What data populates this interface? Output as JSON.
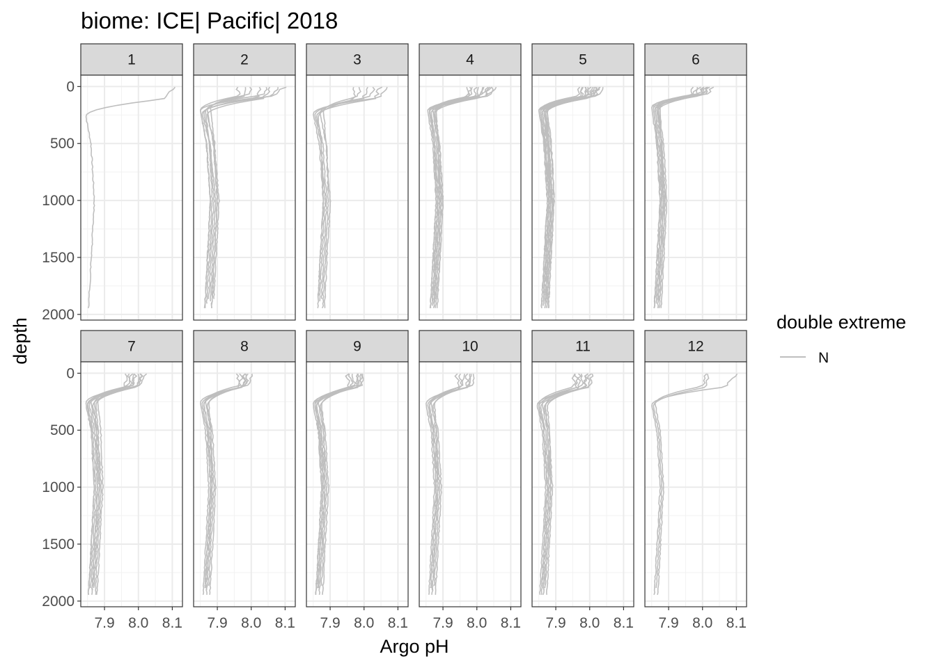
{
  "chart_data": {
    "type": "line",
    "title": "biome: ICE| Pacific| 2018",
    "xlabel": "Argo pH",
    "ylabel": "depth",
    "xlim": [
      7.83,
      8.13
    ],
    "ylim": [
      2050,
      -100
    ],
    "x_ticks": [
      "7.9",
      "8.0",
      "8.1"
    ],
    "x_tick_values": [
      7.9,
      8.0,
      8.1
    ],
    "y_ticks": [
      "0",
      "500",
      "1000",
      "1500",
      "2000"
    ],
    "y_tick_values": [
      0,
      500,
      1000,
      1500,
      2000
    ],
    "legend": {
      "title": "double extreme",
      "entries": [
        {
          "label": "N",
          "color": "#bebebe"
        }
      ],
      "position": "right"
    },
    "line_color": "#bebebe",
    "facets": [
      {
        "label": "1",
        "profiles": [
          {
            "surf": 8.11,
            "min": 7.845,
            "deep": 7.87,
            "thermo": 200,
            "end": 1960
          }
        ]
      },
      {
        "label": "2",
        "profiles": [
          {
            "surf": 8.1,
            "min": 7.85,
            "deep": 7.88,
            "thermo": 150,
            "end": 1950
          },
          {
            "surf": 8.08,
            "min": 7.86,
            "deep": 7.89,
            "thermo": 170,
            "end": 1880
          },
          {
            "surf": 8.05,
            "min": 7.87,
            "deep": 7.9,
            "thermo": 140,
            "end": 1960
          },
          {
            "surf": 8.03,
            "min": 7.855,
            "deep": 7.895,
            "thermo": 180,
            "end": 1900
          },
          {
            "surf": 8.0,
            "min": 7.88,
            "deep": 7.9,
            "thermo": 130,
            "end": 1950
          },
          {
            "surf": 7.98,
            "min": 7.865,
            "deep": 7.885,
            "thermo": 160,
            "end": 1920
          },
          {
            "surf": 8.06,
            "min": 7.87,
            "deep": 7.905,
            "thermo": 190,
            "end": 1880
          },
          {
            "surf": 7.96,
            "min": 7.85,
            "deep": 7.88,
            "thermo": 150,
            "end": 1960
          }
        ]
      },
      {
        "label": "3",
        "profiles": [
          {
            "surf": 8.07,
            "min": 7.85,
            "deep": 7.88,
            "thermo": 180,
            "end": 1950
          },
          {
            "surf": 8.05,
            "min": 7.86,
            "deep": 7.89,
            "thermo": 200,
            "end": 1880
          },
          {
            "surf": 8.03,
            "min": 7.87,
            "deep": 7.9,
            "thermo": 170,
            "end": 1960
          },
          {
            "surf": 8.01,
            "min": 7.855,
            "deep": 7.885,
            "thermo": 190,
            "end": 1900
          },
          {
            "surf": 7.99,
            "min": 7.88,
            "deep": 7.895,
            "thermo": 160,
            "end": 1950
          },
          {
            "surf": 7.97,
            "min": 7.865,
            "deep": 7.88,
            "thermo": 210,
            "end": 1880
          }
        ]
      },
      {
        "label": "4",
        "profiles": [
          {
            "surf": 8.06,
            "min": 7.855,
            "deep": 7.88,
            "thermo": 150,
            "end": 1960
          },
          {
            "surf": 8.05,
            "min": 7.86,
            "deep": 7.885,
            "thermo": 160,
            "end": 1900
          },
          {
            "surf": 8.04,
            "min": 7.865,
            "deep": 7.89,
            "thermo": 170,
            "end": 1950
          },
          {
            "surf": 8.03,
            "min": 7.87,
            "deep": 7.895,
            "thermo": 140,
            "end": 1880
          },
          {
            "surf": 8.02,
            "min": 7.875,
            "deep": 7.9,
            "thermo": 180,
            "end": 1960
          },
          {
            "surf": 8.01,
            "min": 7.88,
            "deep": 7.89,
            "thermo": 155,
            "end": 1920
          },
          {
            "surf": 8.0,
            "min": 7.86,
            "deep": 7.885,
            "thermo": 165,
            "end": 1900
          },
          {
            "surf": 7.99,
            "min": 7.87,
            "deep": 7.895,
            "thermo": 145,
            "end": 1950
          },
          {
            "surf": 7.98,
            "min": 7.865,
            "deep": 7.88,
            "thermo": 175,
            "end": 1960
          },
          {
            "surf": 8.04,
            "min": 7.875,
            "deep": 7.9,
            "thermo": 160,
            "end": 1880
          },
          {
            "surf": 8.02,
            "min": 7.86,
            "deep": 7.885,
            "thermo": 150,
            "end": 1940
          },
          {
            "surf": 7.97,
            "min": 7.88,
            "deep": 7.89,
            "thermo": 170,
            "end": 1920
          }
        ]
      },
      {
        "label": "5",
        "profiles": [
          {
            "surf": 8.04,
            "min": 7.85,
            "deep": 7.875,
            "thermo": 150,
            "end": 1960
          },
          {
            "surf": 8.03,
            "min": 7.855,
            "deep": 7.88,
            "thermo": 160,
            "end": 1900
          },
          {
            "surf": 8.02,
            "min": 7.86,
            "deep": 7.885,
            "thermo": 170,
            "end": 1950
          },
          {
            "surf": 8.01,
            "min": 7.865,
            "deep": 7.89,
            "thermo": 140,
            "end": 1880
          },
          {
            "surf": 8.0,
            "min": 7.87,
            "deep": 7.895,
            "thermo": 180,
            "end": 1960
          },
          {
            "surf": 7.99,
            "min": 7.875,
            "deep": 7.88,
            "thermo": 155,
            "end": 1920
          },
          {
            "surf": 7.98,
            "min": 7.86,
            "deep": 7.885,
            "thermo": 165,
            "end": 1900
          },
          {
            "surf": 7.97,
            "min": 7.855,
            "deep": 7.875,
            "thermo": 145,
            "end": 1950
          },
          {
            "surf": 8.02,
            "min": 7.865,
            "deep": 7.89,
            "thermo": 175,
            "end": 1960
          },
          {
            "surf": 8.01,
            "min": 7.87,
            "deep": 7.885,
            "thermo": 160,
            "end": 1880
          },
          {
            "surf": 8.0,
            "min": 7.85,
            "deep": 7.88,
            "thermo": 150,
            "end": 1940
          },
          {
            "surf": 7.99,
            "min": 7.86,
            "deep": 7.89,
            "thermo": 170,
            "end": 1920
          },
          {
            "surf": 8.03,
            "min": 7.875,
            "deep": 7.895,
            "thermo": 165,
            "end": 1960
          },
          {
            "surf": 7.98,
            "min": 7.855,
            "deep": 7.88,
            "thermo": 155,
            "end": 1900
          }
        ]
      },
      {
        "label": "6",
        "profiles": [
          {
            "surf": 8.03,
            "min": 7.85,
            "deep": 7.875,
            "thermo": 120,
            "end": 1960
          },
          {
            "surf": 8.02,
            "min": 7.855,
            "deep": 7.88,
            "thermo": 130,
            "end": 1900
          },
          {
            "surf": 8.01,
            "min": 7.86,
            "deep": 7.885,
            "thermo": 140,
            "end": 1950
          },
          {
            "surf": 8.0,
            "min": 7.865,
            "deep": 7.89,
            "thermo": 110,
            "end": 1880
          },
          {
            "surf": 7.99,
            "min": 7.87,
            "deep": 7.895,
            "thermo": 150,
            "end": 1960
          },
          {
            "surf": 7.98,
            "min": 7.875,
            "deep": 7.88,
            "thermo": 125,
            "end": 1920
          },
          {
            "surf": 8.02,
            "min": 7.86,
            "deep": 7.885,
            "thermo": 135,
            "end": 1900
          },
          {
            "surf": 8.01,
            "min": 7.855,
            "deep": 7.875,
            "thermo": 115,
            "end": 1950
          },
          {
            "surf": 7.97,
            "min": 7.865,
            "deep": 7.89,
            "thermo": 145,
            "end": 1960
          },
          {
            "surf": 8.0,
            "min": 7.87,
            "deep": 7.885,
            "thermo": 130,
            "end": 1880
          }
        ]
      },
      {
        "label": "7",
        "profiles": [
          {
            "surf": 8.02,
            "min": 7.845,
            "deep": 7.87,
            "thermo": 200,
            "end": 1960
          },
          {
            "surf": 8.01,
            "min": 7.85,
            "deep": 7.875,
            "thermo": 210,
            "end": 1900
          },
          {
            "surf": 8.0,
            "min": 7.855,
            "deep": 7.88,
            "thermo": 220,
            "end": 1950
          },
          {
            "surf": 7.99,
            "min": 7.86,
            "deep": 7.885,
            "thermo": 190,
            "end": 1880
          },
          {
            "surf": 7.98,
            "min": 7.865,
            "deep": 7.89,
            "thermo": 230,
            "end": 1960
          },
          {
            "surf": 7.97,
            "min": 7.87,
            "deep": 7.88,
            "thermo": 205,
            "end": 1920
          },
          {
            "surf": 8.01,
            "min": 7.875,
            "deep": 7.885,
            "thermo": 215,
            "end": 1900
          },
          {
            "surf": 7.99,
            "min": 7.88,
            "deep": 7.895,
            "thermo": 195,
            "end": 1950
          },
          {
            "surf": 7.96,
            "min": 7.85,
            "deep": 7.87,
            "thermo": 225,
            "end": 1960
          }
        ]
      },
      {
        "label": "8",
        "profiles": [
          {
            "surf": 8.0,
            "min": 7.85,
            "deep": 7.875,
            "thermo": 200,
            "end": 1960
          },
          {
            "surf": 7.99,
            "min": 7.855,
            "deep": 7.88,
            "thermo": 210,
            "end": 1900
          },
          {
            "surf": 7.98,
            "min": 7.86,
            "deep": 7.885,
            "thermo": 220,
            "end": 1950
          },
          {
            "surf": 7.97,
            "min": 7.865,
            "deep": 7.89,
            "thermo": 190,
            "end": 1880
          },
          {
            "surf": 7.96,
            "min": 7.87,
            "deep": 7.895,
            "thermo": 230,
            "end": 1960
          },
          {
            "surf": 7.99,
            "min": 7.875,
            "deep": 7.885,
            "thermo": 205,
            "end": 1920
          },
          {
            "surf": 7.98,
            "min": 7.86,
            "deep": 7.88,
            "thermo": 215,
            "end": 1900
          }
        ]
      },
      {
        "label": "9",
        "profiles": [
          {
            "surf": 8.0,
            "min": 7.85,
            "deep": 7.875,
            "thermo": 210,
            "end": 1960
          },
          {
            "surf": 7.99,
            "min": 7.855,
            "deep": 7.88,
            "thermo": 220,
            "end": 1900
          },
          {
            "surf": 7.98,
            "min": 7.86,
            "deep": 7.885,
            "thermo": 230,
            "end": 1950
          },
          {
            "surf": 7.97,
            "min": 7.865,
            "deep": 7.89,
            "thermo": 200,
            "end": 1880
          },
          {
            "surf": 7.96,
            "min": 7.87,
            "deep": 7.895,
            "thermo": 240,
            "end": 1960
          },
          {
            "surf": 7.99,
            "min": 7.875,
            "deep": 7.885,
            "thermo": 215,
            "end": 1920
          },
          {
            "surf": 7.95,
            "min": 7.86,
            "deep": 7.88,
            "thermo": 225,
            "end": 1900
          },
          {
            "surf": 7.98,
            "min": 7.855,
            "deep": 7.875,
            "thermo": 205,
            "end": 1950
          }
        ]
      },
      {
        "label": "10",
        "profiles": [
          {
            "surf": 7.99,
            "min": 7.85,
            "deep": 7.875,
            "thermo": 210,
            "end": 1960
          },
          {
            "surf": 7.98,
            "min": 7.855,
            "deep": 7.88,
            "thermo": 220,
            "end": 1900
          },
          {
            "surf": 7.97,
            "min": 7.86,
            "deep": 7.885,
            "thermo": 230,
            "end": 1950
          },
          {
            "surf": 7.96,
            "min": 7.865,
            "deep": 7.89,
            "thermo": 200,
            "end": 1880
          },
          {
            "surf": 7.95,
            "min": 7.87,
            "deep": 7.895,
            "thermo": 240,
            "end": 1960
          },
          {
            "surf": 7.98,
            "min": 7.875,
            "deep": 7.885,
            "thermo": 215,
            "end": 1920
          },
          {
            "surf": 7.94,
            "min": 7.86,
            "deep": 7.88,
            "thermo": 225,
            "end": 1900
          }
        ]
      },
      {
        "label": "11",
        "profiles": [
          {
            "surf": 8.01,
            "min": 7.845,
            "deep": 7.87,
            "thermo": 220,
            "end": 1960
          },
          {
            "surf": 8.0,
            "min": 7.85,
            "deep": 7.875,
            "thermo": 230,
            "end": 1900
          },
          {
            "surf": 7.99,
            "min": 7.855,
            "deep": 7.88,
            "thermo": 240,
            "end": 1950
          },
          {
            "surf": 7.98,
            "min": 7.86,
            "deep": 7.885,
            "thermo": 210,
            "end": 1880
          },
          {
            "surf": 7.97,
            "min": 7.865,
            "deep": 7.89,
            "thermo": 250,
            "end": 1960
          },
          {
            "surf": 7.96,
            "min": 7.87,
            "deep": 7.88,
            "thermo": 225,
            "end": 1920
          },
          {
            "surf": 7.99,
            "min": 7.875,
            "deep": 7.885,
            "thermo": 235,
            "end": 1900
          },
          {
            "surf": 7.95,
            "min": 7.85,
            "deep": 7.875,
            "thermo": 215,
            "end": 1950
          }
        ]
      },
      {
        "label": "12",
        "profiles": [
          {
            "surf": 8.1,
            "min": 7.85,
            "deep": 7.875,
            "thermo": 220,
            "end": 1960
          },
          {
            "surf": 8.02,
            "min": 7.855,
            "deep": 7.88,
            "thermo": 230,
            "end": 1900
          },
          {
            "surf": 8.01,
            "min": 7.86,
            "deep": 7.885,
            "thermo": 210,
            "end": 1950
          }
        ]
      }
    ]
  }
}
